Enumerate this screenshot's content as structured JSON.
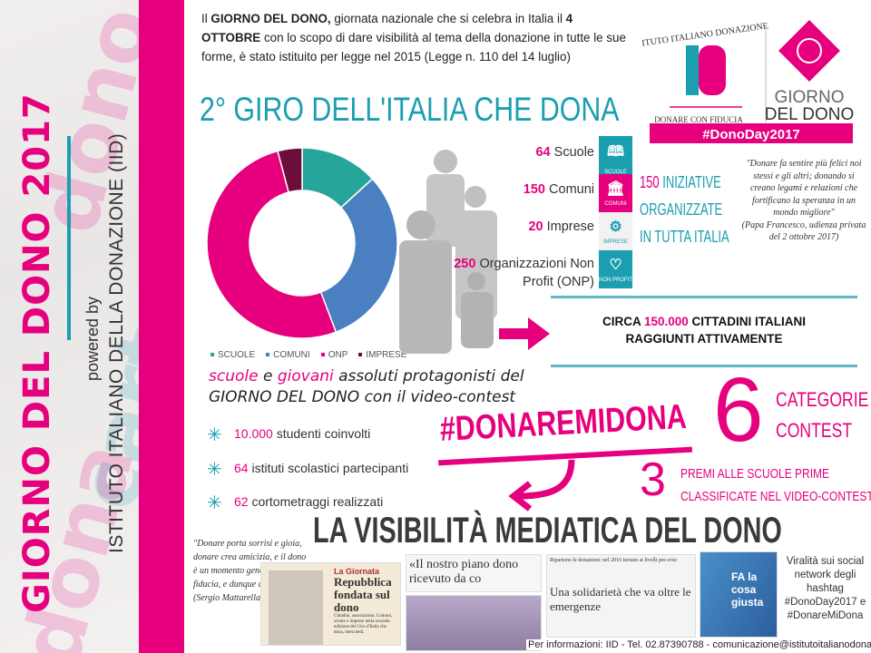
{
  "sidebar": {
    "title": "GIORNO DEL DONO 2017",
    "powered_by": "powered by",
    "institute": "ISTITUTO ITALIANO DELLA DONAZIONE (IID)"
  },
  "intro": {
    "p1": "Il ",
    "b1": "GIORNO DEL DONO,",
    "p2": " giornata nazionale che si celebra in Italia il ",
    "b2": "4 OTTOBRE",
    "p3": " con lo scopo di dare visibilità al tema della donazione in tutte le sue forme, è stato istituito per legge nel 2015 (Legge n. 110 del 14 luglio)"
  },
  "logos": {
    "iid_arc": "ISTITUTO ITALIANO DONAZIONE",
    "iid_mark": "ID",
    "iid_tagline": "DONARE CON FIDUCIA",
    "gdd_1": "GIORNO",
    "gdd_2": "DEL DONO",
    "hashtag": "#DonoDay2017"
  },
  "giro_title": "2° GIRO DELL'ITALIA CHE DONA",
  "chart_data": {
    "type": "pie",
    "donut": true,
    "categories": [
      "SCUOLE",
      "COMUNI",
      "ONP",
      "IMPRESE"
    ],
    "values": [
      64,
      150,
      250,
      20
    ],
    "colors": [
      "#26a69a",
      "#4a7fc1",
      "#e6007e",
      "#6b0f3a"
    ],
    "legend": "bottom"
  },
  "stats": [
    {
      "num": "64",
      "label": "Scuole"
    },
    {
      "num": "150",
      "label": "Comuni"
    },
    {
      "num": "20",
      "label": "Imprese"
    },
    {
      "num": "250",
      "label": "Organizzazioni Non Profit (ONP)"
    }
  ],
  "icons": [
    {
      "name": "book-icon",
      "label": "SCUOLE",
      "color": "#1a9eb0"
    },
    {
      "name": "bank-icon",
      "label": "COMUNI",
      "color": "#e6007e"
    },
    {
      "name": "gears-icon",
      "label": "IMPRESE",
      "color": "#f2f2f2"
    },
    {
      "name": "heart-icon",
      "label": "NON PROFIT",
      "color": "#1a9eb0"
    }
  ],
  "initiatives": {
    "num": "150",
    "l1": " INIZIATIVE",
    "l2": "ORGANIZZATE",
    "l3": "IN TUTTA ITALIA"
  },
  "papa_quote": {
    "text": "\"Donare fa sentire più felici noi stessi e gli altri; donando si creano legami e relazioni che fortificano la speranza in un mondo migliore\"",
    "source": "(Papa Francesco, udienza privata del 2 ottobre 2017)"
  },
  "reach": {
    "pre": "CIRCA ",
    "num": "150.000",
    "post": " CITTADINI ITALIANI",
    "l2": "RAGGIUNTI ATTIVAMENTE"
  },
  "protagonists": {
    "w1": "scuole",
    "w2": " e ",
    "w3": "giovani",
    "w4": " assoluti protagonisti del",
    "l2a": "GIORNO DEL DONO",
    "l2b": " con il video-contest"
  },
  "bullets": [
    {
      "num": "10.000",
      "text": " studenti coinvolti"
    },
    {
      "num": "64",
      "text": " istituti scolastici partecipanti"
    },
    {
      "num": "62",
      "text": " cortometraggi realizzati"
    }
  ],
  "contest": {
    "hashtag": "#DONAREMIDONA",
    "categories_num": "6",
    "categories_l1": "CATEGORIE",
    "categories_l2": "CONTEST",
    "prizes_num": "3",
    "prizes_l1": "PREMI ALLE SCUOLE PRIME",
    "prizes_l2": "CLASSIFICATE NEL VIDEO-CONTEST"
  },
  "media": {
    "title": "LA VISIBILITÀ MEDIATICA DEL DONO",
    "quote": "\"Donare porta sorrisi e gioia, donare crea amicizia, e il dono è un momento generativo di fiducia, e dunque di comunità\"",
    "quote_source": "(Sergio Mattarella)",
    "clip1_kicker": "La Giornata",
    "clip1_head": "Repubblica fondata sul dono",
    "clip1_body": "Cittadini, associazioni, Comuni, scuole e imprese nella seconda edizione del Giro d'Italia che dona, mercoledì.",
    "clip2_head": "«Il nostro piano dono ricevuto da co",
    "clip3_top": "Ripartono le donazioni: nel 2016 tornate ai livelli pre-crisi",
    "clip3_head": "Una solidarietà che va oltre le emergenze",
    "clip4_text": "FA la cosa giusta",
    "virality": "Viralità sui social network degli hashtag #DonoDay2017 e #DonareMiDona"
  },
  "footer": "Per informazioni: IID - Tel. 02.87390788 - comunicazione@istitutoitalianodonazione.it"
}
